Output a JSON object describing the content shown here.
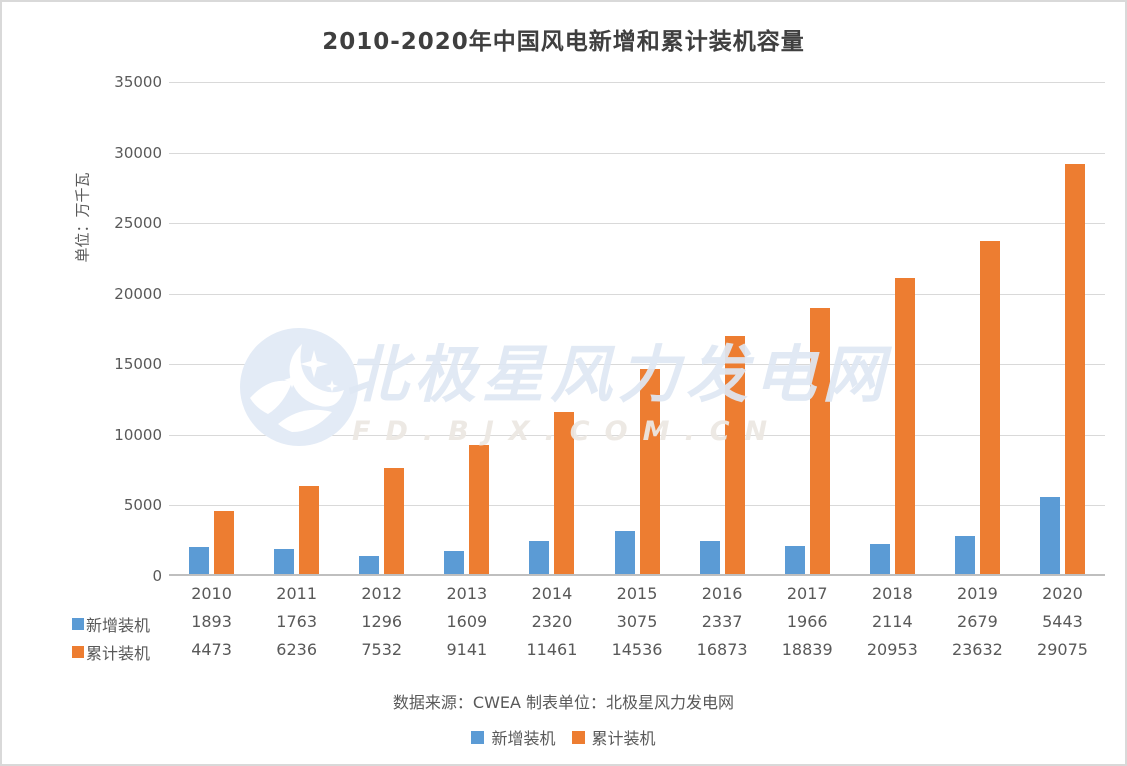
{
  "title": "2010-2020年中国风电新增和累计装机容量",
  "y_axis_unit": "单位：万千瓦",
  "source_line": "数据来源：CWEA 制表单位：北极星风力发电网",
  "watermark": {
    "logo": "moon-stars-logo",
    "line1": "北极星风力发电网",
    "line2": "FD.BJX.COM.CN"
  },
  "colors": {
    "new_installed": "#5B9BD5",
    "cumulative": "#ED7D31",
    "gridline": "#D9D9D9",
    "axis_line": "#BFBFBF",
    "text": "#595959",
    "title": "#3F3F3F",
    "watermark_blue": "#DEE7F3",
    "watermark_gray": "#ECE8E3",
    "frame_border": "#D9D9D9"
  },
  "chart_data": {
    "type": "bar",
    "title": "2010-2020年中国风电新增和累计装机容量",
    "ylabel": "单位：万千瓦",
    "categories": [
      "2010",
      "2011",
      "2012",
      "2013",
      "2014",
      "2015",
      "2016",
      "2017",
      "2018",
      "2019",
      "2020"
    ],
    "series": [
      {
        "name": "新增装机",
        "color": "#5B9BD5",
        "values": [
          1893,
          1763,
          1296,
          1609,
          2320,
          3075,
          2337,
          1966,
          2114,
          2679,
          5443
        ]
      },
      {
        "name": "累计装机",
        "color": "#ED7D31",
        "values": [
          4473,
          6236,
          7532,
          9141,
          11461,
          14536,
          16873,
          18839,
          20953,
          23632,
          29075
        ]
      }
    ],
    "ylim": [
      0,
      35000
    ],
    "yticks": [
      0,
      5000,
      10000,
      15000,
      20000,
      25000,
      30000,
      35000
    ],
    "grid": true,
    "legend_position": "bottom",
    "data_table_below_axis": true
  }
}
